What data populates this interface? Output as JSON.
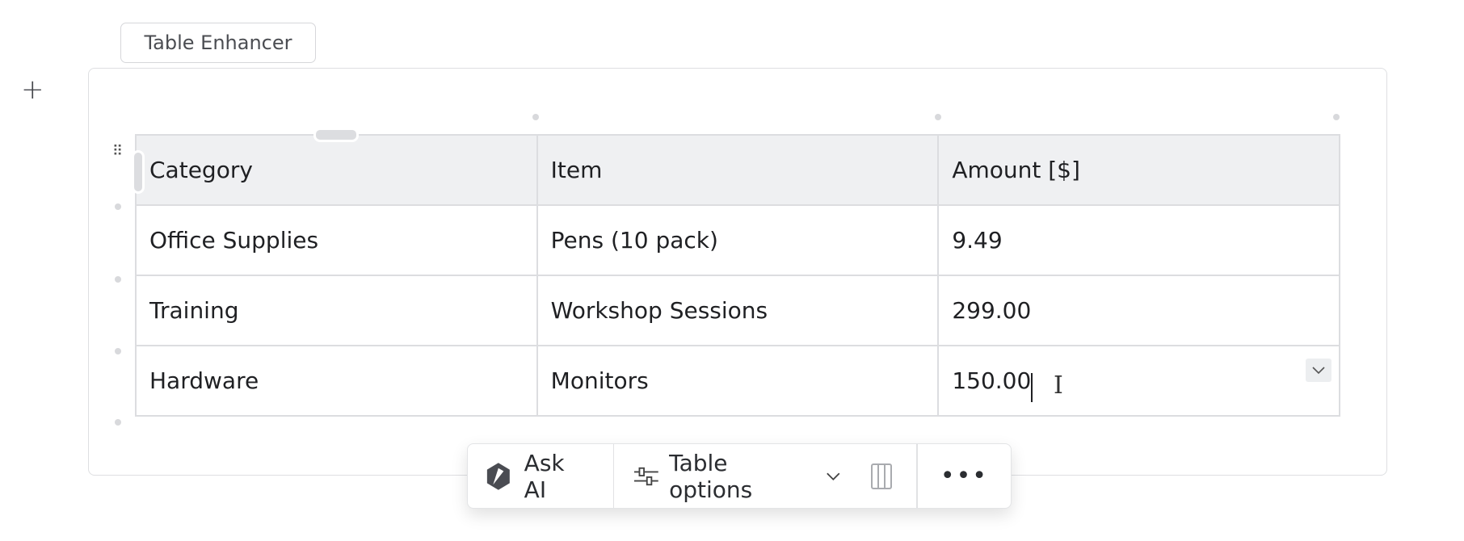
{
  "block_label": "Table Enhancer",
  "add_icon": "plus-icon",
  "table": {
    "headers": [
      "Category",
      "Item",
      "Amount [$]"
    ],
    "rows": [
      [
        "Office Supplies",
        "Pens (10 pack)",
        "9.49"
      ],
      [
        "Training",
        "Workshop Sessions",
        "299.00"
      ],
      [
        "Hardware",
        "Monitors",
        "150.00"
      ]
    ]
  },
  "toolbar": {
    "ask_ai": "Ask AI",
    "table_options": "Table options",
    "icons": [
      "ai-logo-icon",
      "sliders-icon",
      "chevron-down-icon",
      "columns-icon",
      "more-icon"
    ]
  }
}
